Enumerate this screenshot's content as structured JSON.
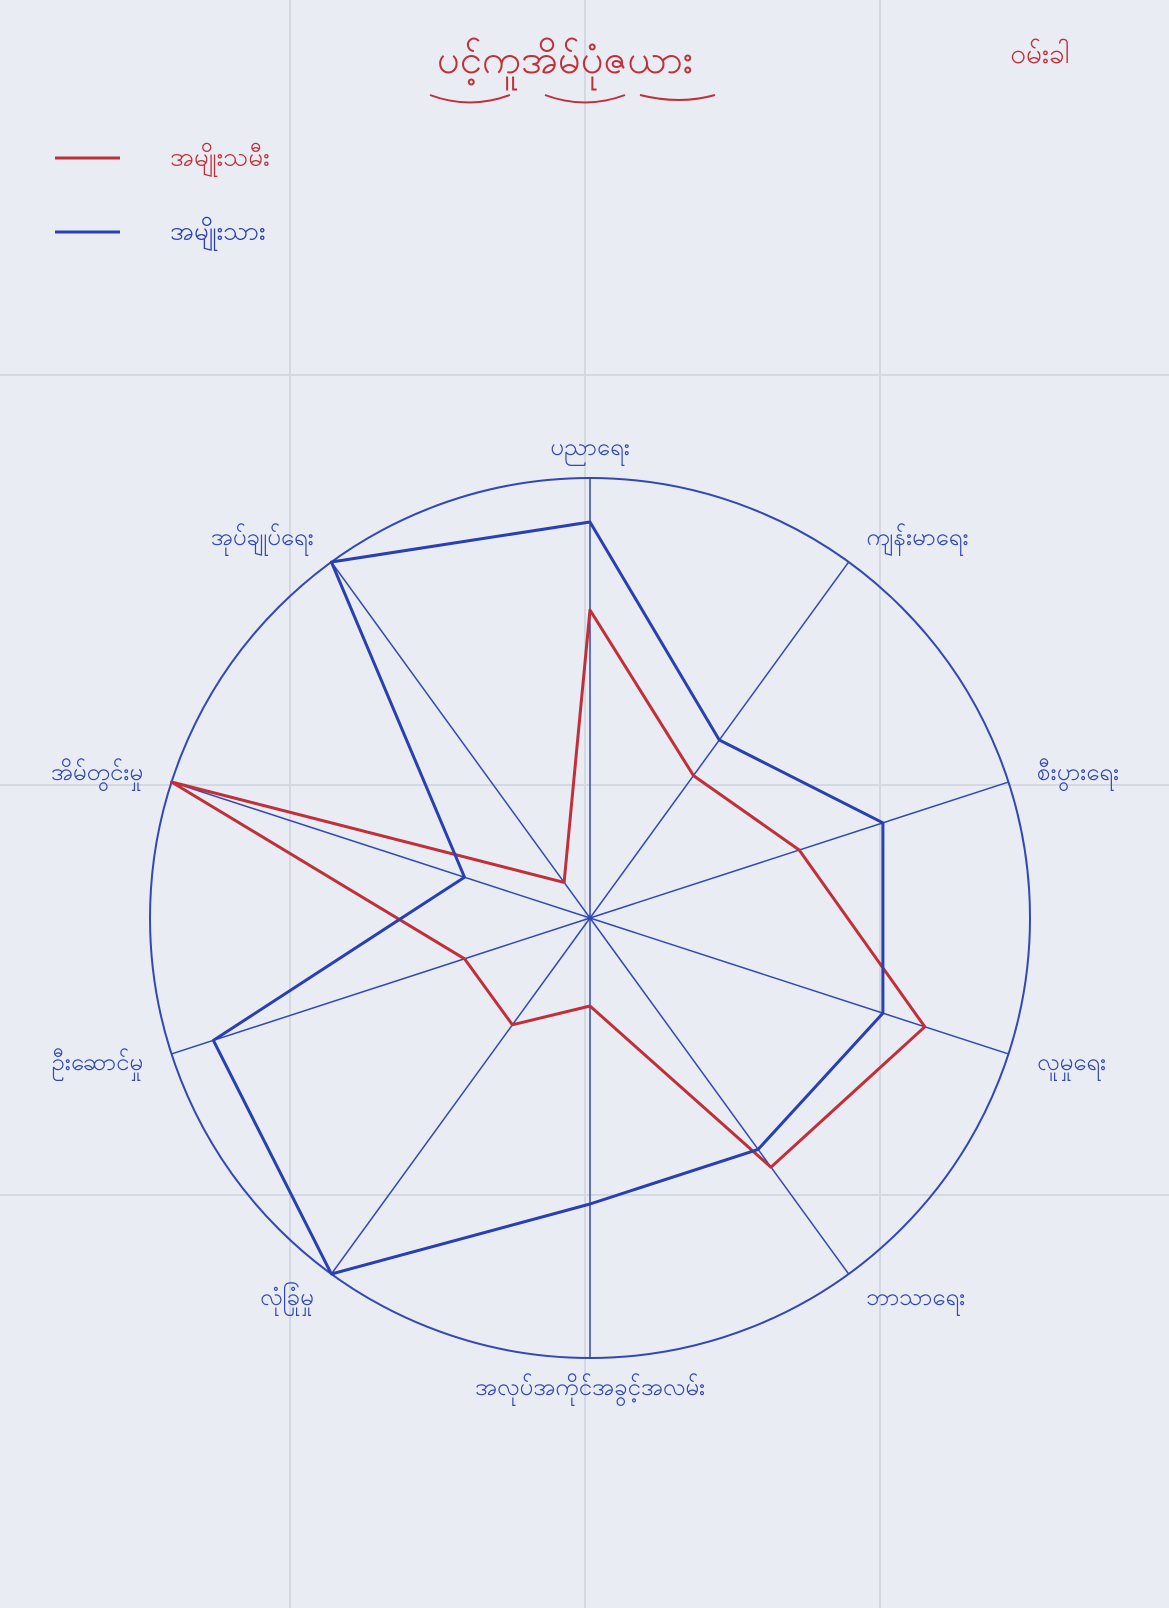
{
  "chart_data": {
    "type": "radar",
    "title": "ပင့်ကူအိမ်ပုံဇယား",
    "annotation": "ဝမ်းခါ",
    "categories": [
      "ပညာရေး",
      "ကျန်းမာရေး",
      "စီးပွားရေး",
      "လူမှုရေး",
      "ဘာသာရေး",
      "အလုပ်အကိုင်အခွင့်အလမ်း",
      "လုံခြုံမှု",
      "ဦးဆောင်မှု",
      "အိမ်တွင်းမှု",
      "အုပ်ချုပ်ရေး"
    ],
    "series": [
      {
        "name": "အမျိုးသမီး",
        "color": "#c0303a",
        "values": [
          7,
          4,
          5,
          8,
          7,
          2,
          3,
          3,
          10,
          1
        ]
      },
      {
        "name": "အမျိုးသား",
        "color": "#2a3fb0",
        "values": [
          9,
          5,
          7,
          7,
          6.5,
          6.5,
          10,
          9,
          3,
          10
        ]
      }
    ],
    "rlim": [
      0,
      10
    ],
    "grid": true,
    "grid_color": "#3347b5"
  }
}
